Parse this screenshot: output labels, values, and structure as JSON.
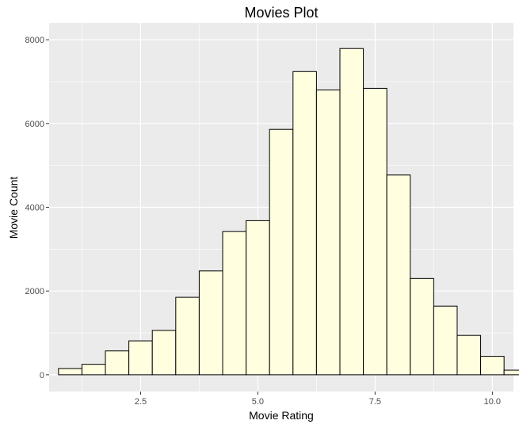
{
  "chart_data": {
    "type": "bar",
    "title": "Movies Plot",
    "xlabel": "Movie Rating",
    "ylabel": "Movie Count",
    "xlim": [
      0.55,
      10.45
    ],
    "ylim": [
      -400,
      8400
    ],
    "xticks": [
      2.5,
      5.0,
      7.5,
      10.0
    ],
    "xtick_labels": [
      "2.5",
      "5.0",
      "7.5",
      "10.0"
    ],
    "yticks": [
      0,
      2000,
      4000,
      6000,
      8000
    ],
    "ytick_labels": [
      "0",
      "2000",
      "4000",
      "6000",
      "8000"
    ],
    "grid": true,
    "bar_fill": "#FFFFE0",
    "bar_stroke": "#000000",
    "panel_background": "#EBEBEB",
    "grid_color": "#FFFFFF",
    "bins": [
      {
        "x0": 0.75,
        "x1": 1.25,
        "count": 150
      },
      {
        "x0": 1.25,
        "x1": 1.75,
        "count": 250
      },
      {
        "x0": 1.75,
        "x1": 2.25,
        "count": 570
      },
      {
        "x0": 2.25,
        "x1": 2.75,
        "count": 810
      },
      {
        "x0": 2.75,
        "x1": 3.25,
        "count": 1060
      },
      {
        "x0": 3.25,
        "x1": 3.75,
        "count": 1850
      },
      {
        "x0": 3.75,
        "x1": 4.25,
        "count": 2480
      },
      {
        "x0": 4.25,
        "x1": 4.75,
        "count": 3420
      },
      {
        "x0": 4.75,
        "x1": 5.25,
        "count": 3680
      },
      {
        "x0": 5.25,
        "x1": 5.75,
        "count": 5860
      },
      {
        "x0": 5.75,
        "x1": 6.25,
        "count": 7240
      },
      {
        "x0": 6.25,
        "x1": 6.75,
        "count": 6800
      },
      {
        "x0": 6.75,
        "x1": 7.25,
        "count": 7790
      },
      {
        "x0": 7.25,
        "x1": 7.75,
        "count": 6840
      },
      {
        "x0": 7.75,
        "x1": 8.25,
        "count": 4770
      },
      {
        "x0": 8.25,
        "x1": 8.75,
        "count": 2300
      },
      {
        "x0": 8.75,
        "x1": 9.25,
        "count": 1640
      },
      {
        "x0": 9.25,
        "x1": 9.75,
        "count": 940
      },
      {
        "x0": 9.75,
        "x1": 10.25,
        "count": 440
      },
      {
        "x0": 10.25,
        "x1": 10.75,
        "count": 110
      }
    ]
  }
}
